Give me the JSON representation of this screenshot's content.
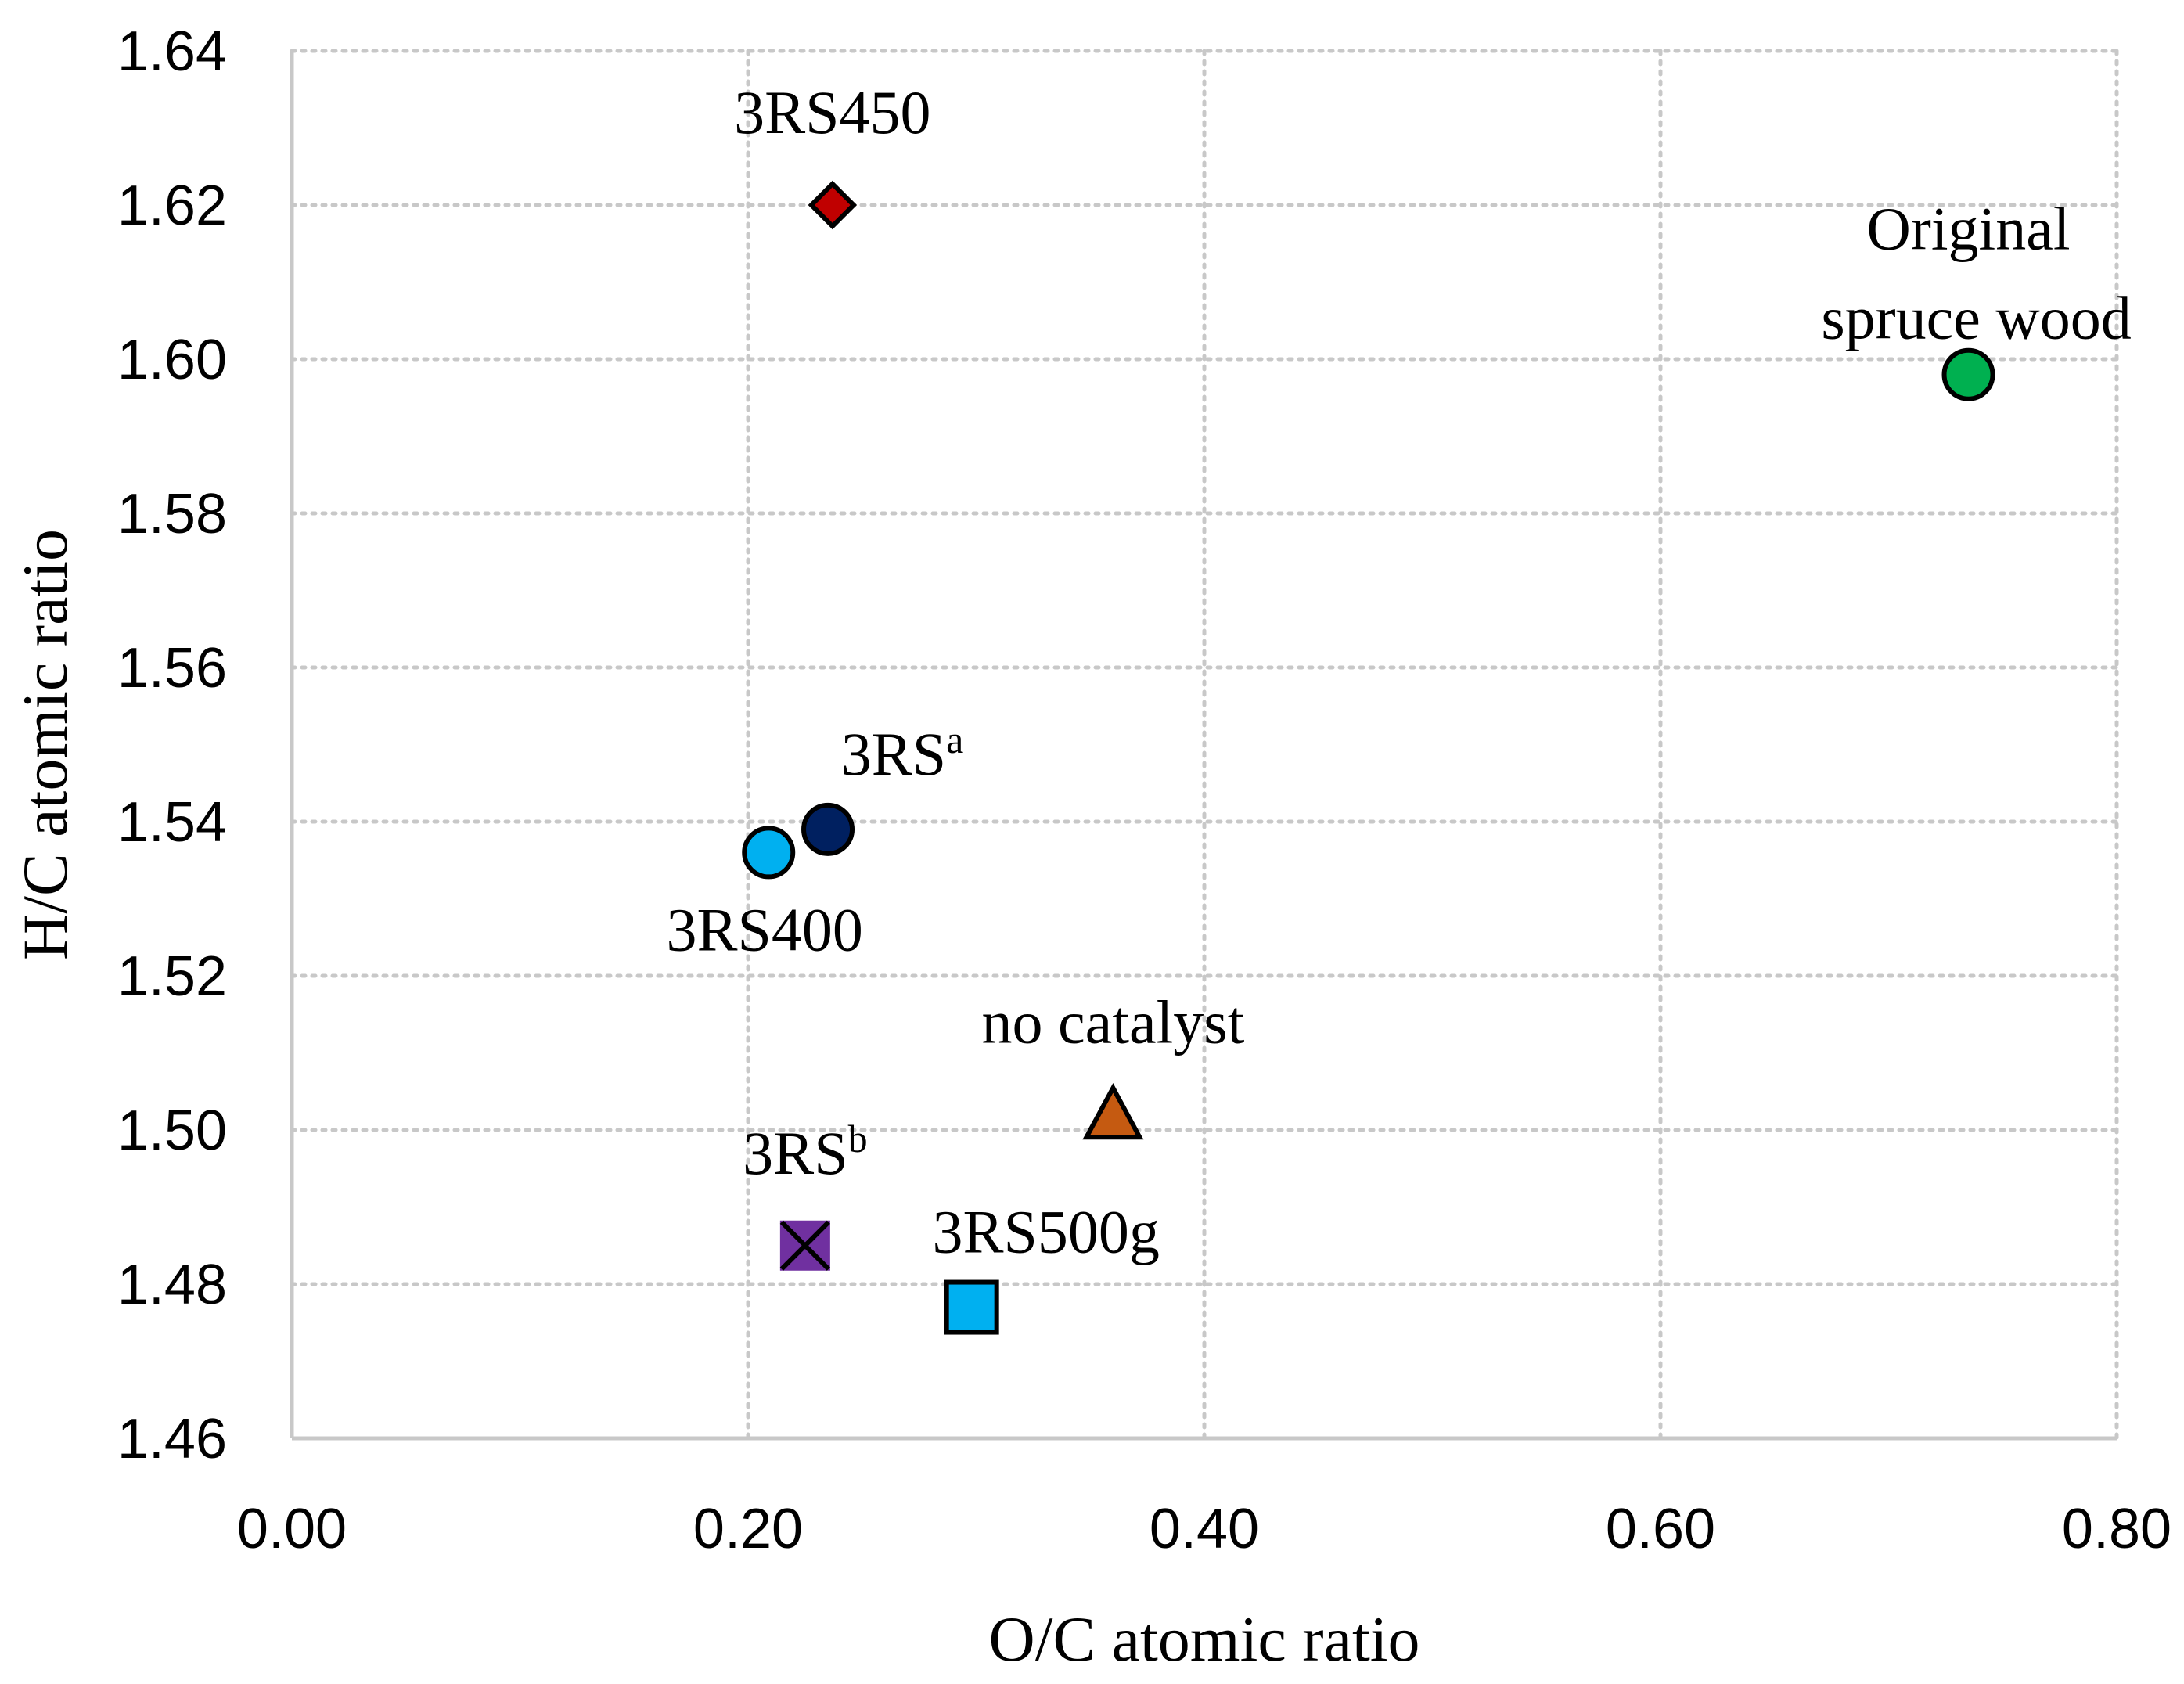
{
  "chart_data": {
    "type": "scatter",
    "title": "",
    "xlabel": "O/C atomic ratio",
    "ylabel": "H/C atomic ratio",
    "xlim": [
      0.0,
      0.8
    ],
    "ylim": [
      1.46,
      1.64
    ],
    "xticks": [
      "0.00",
      "0.20",
      "0.40",
      "0.60",
      "0.80"
    ],
    "yticks": [
      "1.46",
      "1.48",
      "1.50",
      "1.52",
      "1.54",
      "1.56",
      "1.58",
      "1.60",
      "1.62",
      "1.64"
    ],
    "grid": true,
    "legend": "none",
    "points": [
      {
        "label": "3RS450",
        "label_sup": "",
        "x": 0.237,
        "y": 1.62,
        "marker": "diamond",
        "color": "#c00000",
        "label_pos": "above"
      },
      {
        "label": "Original",
        "label_line2": "spruce wood",
        "label_sup": "",
        "x": 0.735,
        "y": 1.598,
        "marker": "circle",
        "color": "#00b050",
        "label_pos": "above"
      },
      {
        "label": "3RS",
        "label_sup": "a",
        "x": 0.235,
        "y": 1.539,
        "marker": "circle",
        "color": "#002060",
        "label_pos": "above-right"
      },
      {
        "label": "3RS400",
        "label_sup": "",
        "x": 0.209,
        "y": 1.536,
        "marker": "circle",
        "color": "#00b0f0",
        "label_pos": "below"
      },
      {
        "label": "no catalyst",
        "label_sup": "",
        "x": 0.36,
        "y": 1.502,
        "marker": "triangle",
        "color": "#c55a11",
        "label_pos": "above"
      },
      {
        "label": "3RS",
        "label_sup": "b",
        "x": 0.225,
        "y": 1.485,
        "marker": "x-square",
        "color": "#7030a0",
        "label_pos": "above"
      },
      {
        "label": "3RS500g",
        "label_sup": "",
        "x": 0.298,
        "y": 1.477,
        "marker": "square",
        "color": "#00b0f0",
        "label_pos": "above-right"
      }
    ]
  }
}
